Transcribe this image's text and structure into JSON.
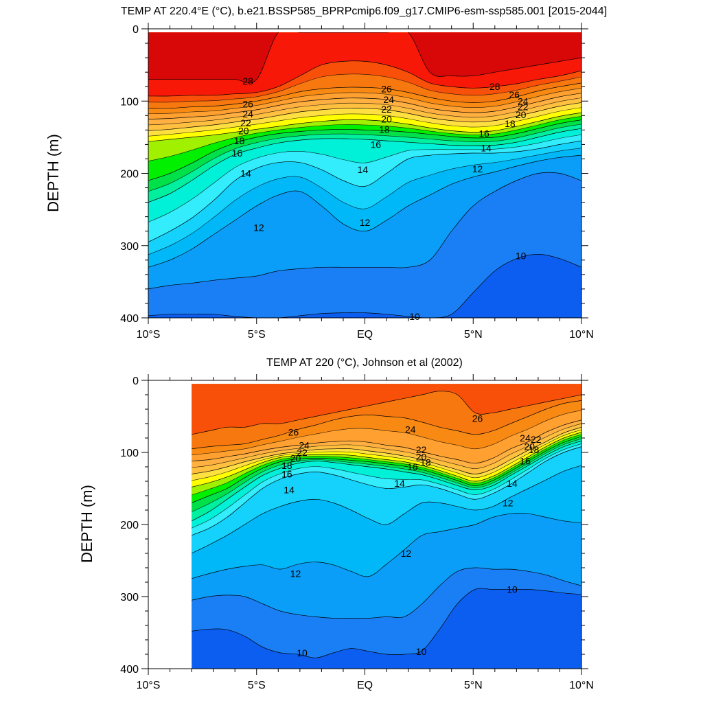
{
  "colors": {
    "levels": [
      {
        "min": 8,
        "max": 9,
        "color": "#0a44e0"
      },
      {
        "min": 9,
        "max": 10,
        "color": "#0c5ef0"
      },
      {
        "min": 10,
        "max": 11,
        "color": "#1a7ff4"
      },
      {
        "min": 11,
        "max": 12,
        "color": "#0a9ef8"
      },
      {
        "min": 12,
        "max": 13,
        "color": "#00b8f8"
      },
      {
        "min": 13,
        "max": 14,
        "color": "#14d2fc"
      },
      {
        "min": 14,
        "max": 15,
        "color": "#33ecfc"
      },
      {
        "min": 15,
        "max": 16,
        "color": "#00f0d8"
      },
      {
        "min": 16,
        "max": 17,
        "color": "#00f0a0"
      },
      {
        "min": 17,
        "max": 18,
        "color": "#00e048"
      },
      {
        "min": 18,
        "max": 19,
        "color": "#00f000"
      },
      {
        "min": 19,
        "max": 20,
        "color": "#a0f000"
      },
      {
        "min": 20,
        "max": 21,
        "color": "#ffff00"
      },
      {
        "min": 21,
        "max": 22,
        "color": "#ffe040"
      },
      {
        "min": 22,
        "max": 23,
        "color": "#ffc040"
      },
      {
        "min": 23,
        "max": 24,
        "color": "#ffb040"
      },
      {
        "min": 24,
        "max": 25,
        "color": "#ffa030"
      },
      {
        "min": 25,
        "max": 26,
        "color": "#f88a14"
      },
      {
        "min": 26,
        "max": 27,
        "color": "#f87810"
      },
      {
        "min": 27,
        "max": 28,
        "color": "#f85008"
      },
      {
        "min": 28,
        "max": 29,
        "color": "#f81808"
      },
      {
        "min": 29,
        "max": 31,
        "color": "#d80808"
      }
    ]
  },
  "chart_data": [
    {
      "type": "heatmap",
      "title": "TEMP AT 220.4°E (°C), b.e21.BSSP585_BPRPcmip6.f09_g17.CMIP6-esm-ssp585.001 [2015-2044]",
      "ylabel": "DEPTH (m)",
      "xlabel": "",
      "xlim": [
        -10,
        10
      ],
      "ylim": [
        400,
        0
      ],
      "data_top_depth": 5,
      "data_left_lat": -10,
      "x_ticks": [
        {
          "value": -10,
          "label": "10°S"
        },
        {
          "value": -5,
          "label": "5°S"
        },
        {
          "value": 0,
          "label": "EQ"
        },
        {
          "value": 5,
          "label": "5°N"
        },
        {
          "value": 10,
          "label": "10°N"
        }
      ],
      "y_ticks": [
        {
          "value": 0,
          "label": "0"
        },
        {
          "value": 100,
          "label": "100"
        },
        {
          "value": 200,
          "label": "200"
        },
        {
          "value": 300,
          "label": "300"
        },
        {
          "value": 400,
          "label": "400"
        }
      ],
      "isotherms": [
        {
          "temp": 29,
          "depths": [
            70,
            70,
            70,
            70,
            70,
            70,
            5,
            5,
            5,
            5,
            5,
            5,
            5,
            60,
            65,
            65,
            60,
            55,
            50,
            45,
            40
          ]
        },
        {
          "temp": 28,
          "depths": [
            93,
            93,
            92,
            92,
            90,
            88,
            80,
            65,
            50,
            45,
            45,
            50,
            60,
            75,
            80,
            82,
            80,
            76,
            70,
            65,
            58
          ]
        },
        {
          "temp": 26,
          "depths": [
            110,
            110,
            108,
            107,
            104,
            100,
            94,
            87,
            83,
            81,
            81,
            83,
            88,
            95,
            100,
            102,
            100,
            94,
            86,
            80,
            75
          ]
        },
        {
          "temp": 24,
          "depths": [
            125,
            124,
            122,
            120,
            116,
            112,
            106,
            101,
            98,
            96,
            96,
            98,
            103,
            110,
            114,
            116,
            114,
            108,
            101,
            94,
            89
          ]
        },
        {
          "temp": 22,
          "depths": [
            141,
            139,
            136,
            133,
            129,
            125,
            120,
            115,
            112,
            110,
            110,
            112,
            117,
            123,
            127,
            129,
            127,
            121,
            114,
            107,
            102
          ]
        },
        {
          "temp": 20,
          "depths": [
            156,
            153,
            150,
            147,
            143,
            139,
            135,
            131,
            128,
            126,
            126,
            128,
            132,
            137,
            141,
            143,
            141,
            135,
            128,
            121,
            116
          ]
        },
        {
          "temp": 18,
          "depths": [
            210,
            200,
            186,
            170,
            158,
            150,
            145,
            142,
            140,
            139,
            140,
            141,
            143,
            146,
            149,
            151,
            150,
            145,
            138,
            131,
            126
          ]
        },
        {
          "temp": 16,
          "depths": [
            240,
            228,
            210,
            190,
            174,
            165,
            158,
            154,
            152,
            152,
            153,
            155,
            157,
            159,
            161,
            162,
            161,
            157,
            150,
            143,
            138
          ]
        },
        {
          "temp": 14,
          "depths": [
            295,
            280,
            262,
            238,
            210,
            193,
            185,
            185,
            195,
            210,
            218,
            200,
            180,
            175,
            173,
            172,
            172,
            170,
            166,
            160,
            155
          ]
        },
        {
          "temp": 12,
          "depths": [
            330,
            320,
            305,
            285,
            265,
            245,
            230,
            225,
            245,
            270,
            280,
            265,
            245,
            230,
            215,
            205,
            198,
            190,
            183,
            178,
            175
          ]
        },
        {
          "temp": 11,
          "depths": [
            360,
            355,
            352,
            348,
            345,
            342,
            335,
            332,
            330,
            330,
            330,
            330,
            330,
            320,
            280,
            245,
            225,
            210,
            200,
            200,
            210
          ]
        },
        {
          "temp": 10,
          "depths": [
            397,
            395,
            395,
            395,
            398,
            400,
            400,
            397,
            394,
            393,
            393,
            395,
            398,
            400,
            395,
            365,
            335,
            318,
            312,
            318,
            330
          ]
        }
      ],
      "contour_labels": [
        {
          "text": "28",
          "lat": -5.4,
          "depth": 72
        },
        {
          "text": "26",
          "lat": -5.4,
          "depth": 104
        },
        {
          "text": "24",
          "lat": -5.4,
          "depth": 118
        },
        {
          "text": "22",
          "lat": -5.5,
          "depth": 130
        },
        {
          "text": "20",
          "lat": -5.6,
          "depth": 141
        },
        {
          "text": "18",
          "lat": -5.8,
          "depth": 155
        },
        {
          "text": "16",
          "lat": -5.9,
          "depth": 172
        },
        {
          "text": "14",
          "lat": -5.5,
          "depth": 200
        },
        {
          "text": "12",
          "lat": -4.9,
          "depth": 275
        },
        {
          "text": "26",
          "lat": 1.0,
          "depth": 83
        },
        {
          "text": "24",
          "lat": 1.1,
          "depth": 98
        },
        {
          "text": "22",
          "lat": 1.0,
          "depth": 111
        },
        {
          "text": "20",
          "lat": 1.0,
          "depth": 125
        },
        {
          "text": "18",
          "lat": 0.9,
          "depth": 139
        },
        {
          "text": "16",
          "lat": 0.5,
          "depth": 160
        },
        {
          "text": "14",
          "lat": -0.1,
          "depth": 195
        },
        {
          "text": "12",
          "lat": 0.0,
          "depth": 268
        },
        {
          "text": "10",
          "lat": 2.3,
          "depth": 398
        },
        {
          "text": "28",
          "lat": 6.0,
          "depth": 80
        },
        {
          "text": "26",
          "lat": 6.9,
          "depth": 91
        },
        {
          "text": "24",
          "lat": 7.3,
          "depth": 100
        },
        {
          "text": "22",
          "lat": 7.3,
          "depth": 108
        },
        {
          "text": "20",
          "lat": 7.2,
          "depth": 119
        },
        {
          "text": "18",
          "lat": 6.7,
          "depth": 131
        },
        {
          "text": "16",
          "lat": 5.5,
          "depth": 145
        },
        {
          "text": "14",
          "lat": 5.6,
          "depth": 165
        },
        {
          "text": "12",
          "lat": 5.2,
          "depth": 194
        },
        {
          "text": "10",
          "lat": 7.2,
          "depth": 314
        }
      ]
    },
    {
      "type": "heatmap",
      "title": "TEMP AT 220 (°C), Johnson et al (2002)",
      "ylabel": "DEPTH (m)",
      "xlabel": "",
      "xlim": [
        -10,
        10
      ],
      "ylim": [
        400,
        0
      ],
      "data_top_depth": 5,
      "data_left_lat": -8,
      "x_ticks": [
        {
          "value": -10,
          "label": "10°S"
        },
        {
          "value": -5,
          "label": "5°S"
        },
        {
          "value": 0,
          "label": "EQ"
        },
        {
          "value": 5,
          "label": "5°N"
        },
        {
          "value": 10,
          "label": "10°N"
        }
      ],
      "y_ticks": [
        {
          "value": 0,
          "label": "0"
        },
        {
          "value": 100,
          "label": "100"
        },
        {
          "value": 200,
          "label": "200"
        },
        {
          "value": 300,
          "label": "300"
        },
        {
          "value": 400,
          "label": "400"
        }
      ],
      "isotherms": [
        {
          "temp": 27,
          "depths": [
            75,
            70,
            65,
            65,
            60,
            60,
            55,
            50,
            45,
            40,
            35,
            30,
            25,
            20,
            15,
            20,
            45,
            45,
            40,
            35,
            30,
            25,
            20
          ]
        },
        {
          "temp": 26,
          "depths": [
            95,
            92,
            90,
            88,
            82,
            76,
            68,
            62,
            55,
            50,
            48,
            50,
            52,
            58,
            65,
            70,
            75,
            70,
            60,
            50,
            40,
            32,
            28
          ]
        },
        {
          "temp": 24,
          "depths": [
            112,
            110,
            106,
            102,
            97,
            93,
            90,
            87,
            85,
            84,
            86,
            90,
            93,
            99,
            105,
            110,
            115,
            108,
            95,
            85,
            72,
            62,
            55
          ]
        },
        {
          "temp": 22,
          "depths": [
            130,
            126,
            120,
            113,
            107,
            102,
            99,
            96,
            95,
            95,
            98,
            101,
            105,
            110,
            117,
            124,
            130,
            123,
            110,
            97,
            85,
            73,
            65
          ]
        },
        {
          "temp": 20,
          "depths": [
            148,
            142,
            134,
            124,
            114,
            107,
            104,
            103,
            103,
            104,
            107,
            110,
            113,
            118,
            125,
            133,
            140,
            133,
            120,
            106,
            92,
            80,
            72
          ]
        },
        {
          "temp": 18,
          "depths": [
            170,
            160,
            150,
            135,
            122,
            113,
            109,
            108,
            109,
            111,
            113,
            116,
            119,
            124,
            131,
            139,
            146,
            139,
            126,
            112,
            98,
            86,
            78
          ]
        },
        {
          "temp": 16,
          "depths": [
            195,
            182,
            165,
            148,
            132,
            122,
            115,
            112,
            114,
            117,
            120,
            123,
            127,
            131,
            138,
            146,
            152,
            146,
            132,
            118,
            104,
            92,
            84
          ]
        },
        {
          "temp": 14,
          "depths": [
            215,
            205,
            190,
            170,
            150,
            137,
            130,
            127,
            131,
            138,
            145,
            150,
            148,
            145,
            150,
            158,
            165,
            157,
            144,
            128,
            112,
            100,
            92
          ]
        },
        {
          "temp": 13,
          "depths": [
            240,
            228,
            215,
            200,
            185,
            175,
            168,
            165,
            170,
            180,
            192,
            200,
            185,
            170,
            170,
            175,
            180,
            175,
            162,
            150,
            138,
            126,
            118
          ]
        },
        {
          "temp": 12,
          "depths": [
            275,
            268,
            262,
            258,
            256,
            262,
            255,
            252,
            256,
            265,
            272,
            255,
            235,
            215,
            210,
            205,
            200,
            190,
            185,
            185,
            190,
            195,
            198
          ]
        },
        {
          "temp": 11,
          "depths": [
            305,
            300,
            298,
            300,
            310,
            320,
            325,
            328,
            330,
            330,
            330,
            328,
            328,
            310,
            285,
            265,
            260,
            262,
            262,
            265,
            270,
            278,
            285
          ]
        },
        {
          "temp": 10,
          "depths": [
            348,
            345,
            346,
            355,
            370,
            378,
            380,
            385,
            378,
            372,
            376,
            380,
            380,
            375,
            345,
            310,
            290,
            290,
            290,
            290,
            292,
            295,
            297
          ]
        }
      ],
      "contour_labels": [
        {
          "text": "26",
          "lat": -3.3,
          "depth": 72
        },
        {
          "text": "24",
          "lat": -2.8,
          "depth": 90
        },
        {
          "text": "22",
          "lat": -2.9,
          "depth": 100
        },
        {
          "text": "20",
          "lat": -3.2,
          "depth": 108
        },
        {
          "text": "18",
          "lat": -3.6,
          "depth": 118
        },
        {
          "text": "16",
          "lat": -3.6,
          "depth": 130
        },
        {
          "text": "14",
          "lat": -3.5,
          "depth": 152
        },
        {
          "text": "12",
          "lat": -3.2,
          "depth": 268
        },
        {
          "text": "10",
          "lat": -2.9,
          "depth": 378
        },
        {
          "text": "24",
          "lat": 2.1,
          "depth": 68
        },
        {
          "text": "22",
          "lat": 2.6,
          "depth": 96
        },
        {
          "text": "20",
          "lat": 2.6,
          "depth": 106
        },
        {
          "text": "18",
          "lat": 2.8,
          "depth": 114
        },
        {
          "text": "16",
          "lat": 2.2,
          "depth": 120
        },
        {
          "text": "14",
          "lat": 1.6,
          "depth": 143
        },
        {
          "text": "12",
          "lat": 1.9,
          "depth": 240
        },
        {
          "text": "10",
          "lat": 2.6,
          "depth": 376
        },
        {
          "text": "26",
          "lat": 5.2,
          "depth": 53
        },
        {
          "text": "24",
          "lat": 7.4,
          "depth": 80
        },
        {
          "text": "22",
          "lat": 7.9,
          "depth": 82
        },
        {
          "text": "20",
          "lat": 7.6,
          "depth": 92
        },
        {
          "text": "18",
          "lat": 7.8,
          "depth": 96
        },
        {
          "text": "16",
          "lat": 7.4,
          "depth": 112
        },
        {
          "text": "14",
          "lat": 6.8,
          "depth": 143
        },
        {
          "text": "12",
          "lat": 6.6,
          "depth": 170
        },
        {
          "text": "10",
          "lat": 6.8,
          "depth": 290
        }
      ]
    }
  ]
}
